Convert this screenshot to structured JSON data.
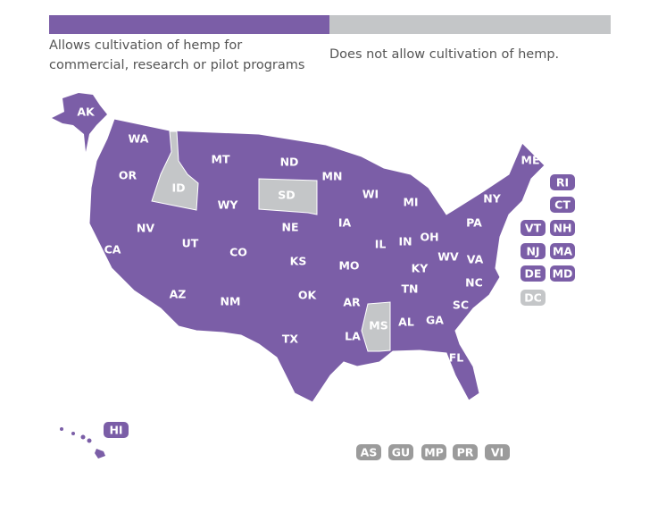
{
  "legend": [
    {
      "label": "Allows cultivation of hemp for commercial, research or pilot programs",
      "color": "#7b5ea7"
    },
    {
      "label": "Does not allow cultivation of hemp.",
      "color": "#c4c6c8"
    }
  ],
  "states": [
    {
      "code": "AK",
      "color": "#7b5ea7"
    },
    {
      "code": "WA",
      "color": "#7b5ea7"
    },
    {
      "code": "OR",
      "color": "#7b5ea7"
    },
    {
      "code": "CA",
      "color": "#7b5ea7"
    },
    {
      "code": "NV",
      "color": "#7b5ea7"
    },
    {
      "code": "ID",
      "color": "#c4c6c8"
    },
    {
      "code": "MT",
      "color": "#7b5ea7"
    },
    {
      "code": "WY",
      "color": "#7b5ea7"
    },
    {
      "code": "UT",
      "color": "#7b5ea7"
    },
    {
      "code": "AZ",
      "color": "#7b5ea7"
    },
    {
      "code": "CO",
      "color": "#7b5ea7"
    },
    {
      "code": "NM",
      "color": "#7b5ea7"
    },
    {
      "code": "ND",
      "color": "#7b5ea7"
    },
    {
      "code": "SD",
      "color": "#c4c6c8"
    },
    {
      "code": "NE",
      "color": "#7b5ea7"
    },
    {
      "code": "KS",
      "color": "#7b5ea7"
    },
    {
      "code": "OK",
      "color": "#7b5ea7"
    },
    {
      "code": "TX",
      "color": "#7b5ea7"
    },
    {
      "code": "MN",
      "color": "#7b5ea7"
    },
    {
      "code": "IA",
      "color": "#7b5ea7"
    },
    {
      "code": "MO",
      "color": "#7b5ea7"
    },
    {
      "code": "AR",
      "color": "#7b5ea7"
    },
    {
      "code": "LA",
      "color": "#7b5ea7"
    },
    {
      "code": "WI",
      "color": "#7b5ea7"
    },
    {
      "code": "IL",
      "color": "#7b5ea7"
    },
    {
      "code": "MS",
      "color": "#c4c6c8"
    },
    {
      "code": "MI",
      "color": "#7b5ea7"
    },
    {
      "code": "IN",
      "color": "#7b5ea7"
    },
    {
      "code": "OH",
      "color": "#7b5ea7"
    },
    {
      "code": "KY",
      "color": "#7b5ea7"
    },
    {
      "code": "TN",
      "color": "#7b5ea7"
    },
    {
      "code": "AL",
      "color": "#7b5ea7"
    },
    {
      "code": "GA",
      "color": "#7b5ea7"
    },
    {
      "code": "FL",
      "color": "#7b5ea7"
    },
    {
      "code": "SC",
      "color": "#7b5ea7"
    },
    {
      "code": "NC",
      "color": "#7b5ea7"
    },
    {
      "code": "VA",
      "color": "#7b5ea7"
    },
    {
      "code": "WV",
      "color": "#7b5ea7"
    },
    {
      "code": "PA",
      "color": "#7b5ea7"
    },
    {
      "code": "NY",
      "color": "#7b5ea7"
    },
    {
      "code": "ME",
      "color": "#7b5ea7"
    },
    {
      "code": "HI",
      "color": "#7b5ea7"
    }
  ],
  "badges": [
    {
      "code": "RI",
      "color": "#7b5ea7"
    },
    {
      "code": "CT",
      "color": "#7b5ea7"
    },
    {
      "code": "VT",
      "color": "#7b5ea7"
    },
    {
      "code": "NH",
      "color": "#7b5ea7"
    },
    {
      "code": "NJ",
      "color": "#7b5ea7"
    },
    {
      "code": "MA",
      "color": "#7b5ea7"
    },
    {
      "code": "DE",
      "color": "#7b5ea7"
    },
    {
      "code": "MD",
      "color": "#7b5ea7"
    },
    {
      "code": "DC",
      "color": "#c4c6c8"
    }
  ],
  "territories": [
    {
      "code": "AS",
      "color": "#9b9b9b"
    },
    {
      "code": "GU",
      "color": "#9b9b9b"
    },
    {
      "code": "MP",
      "color": "#9b9b9b"
    },
    {
      "code": "PR",
      "color": "#9b9b9b"
    },
    {
      "code": "VI",
      "color": "#9b9b9b"
    }
  ]
}
